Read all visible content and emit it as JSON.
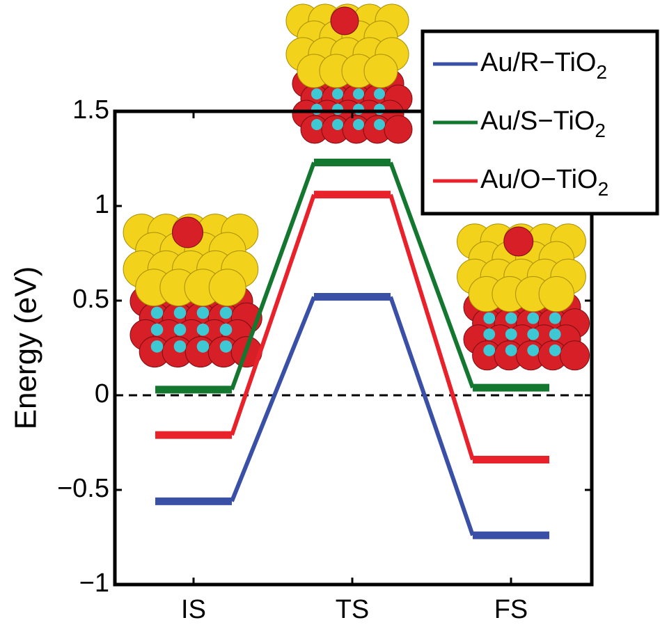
{
  "chart_data": {
    "type": "energy-profile",
    "y_label": "Energy (eV)",
    "categories": [
      "IS",
      "TS",
      "FS"
    ],
    "series": [
      {
        "name": "Au/R−TiO2",
        "color": "#3a4fa6",
        "values": [
          -0.56,
          0.52,
          -0.74
        ]
      },
      {
        "name": "Au/S−TiO2",
        "color": "#13772f",
        "values": [
          0.03,
          1.23,
          0.04
        ]
      },
      {
        "name": "Au/O−TiO2",
        "color": "#e8212a",
        "values": [
          -0.21,
          1.06,
          -0.34
        ]
      }
    ],
    "ylim": [
      -1,
      1.5
    ],
    "yticks": [
      {
        "value": -1,
        "label": "−1"
      },
      {
        "value": -0.5,
        "label": "−0.5"
      },
      0,
      0.5,
      1,
      1.5
    ],
    "zero_line": true,
    "legend": "upper right"
  }
}
